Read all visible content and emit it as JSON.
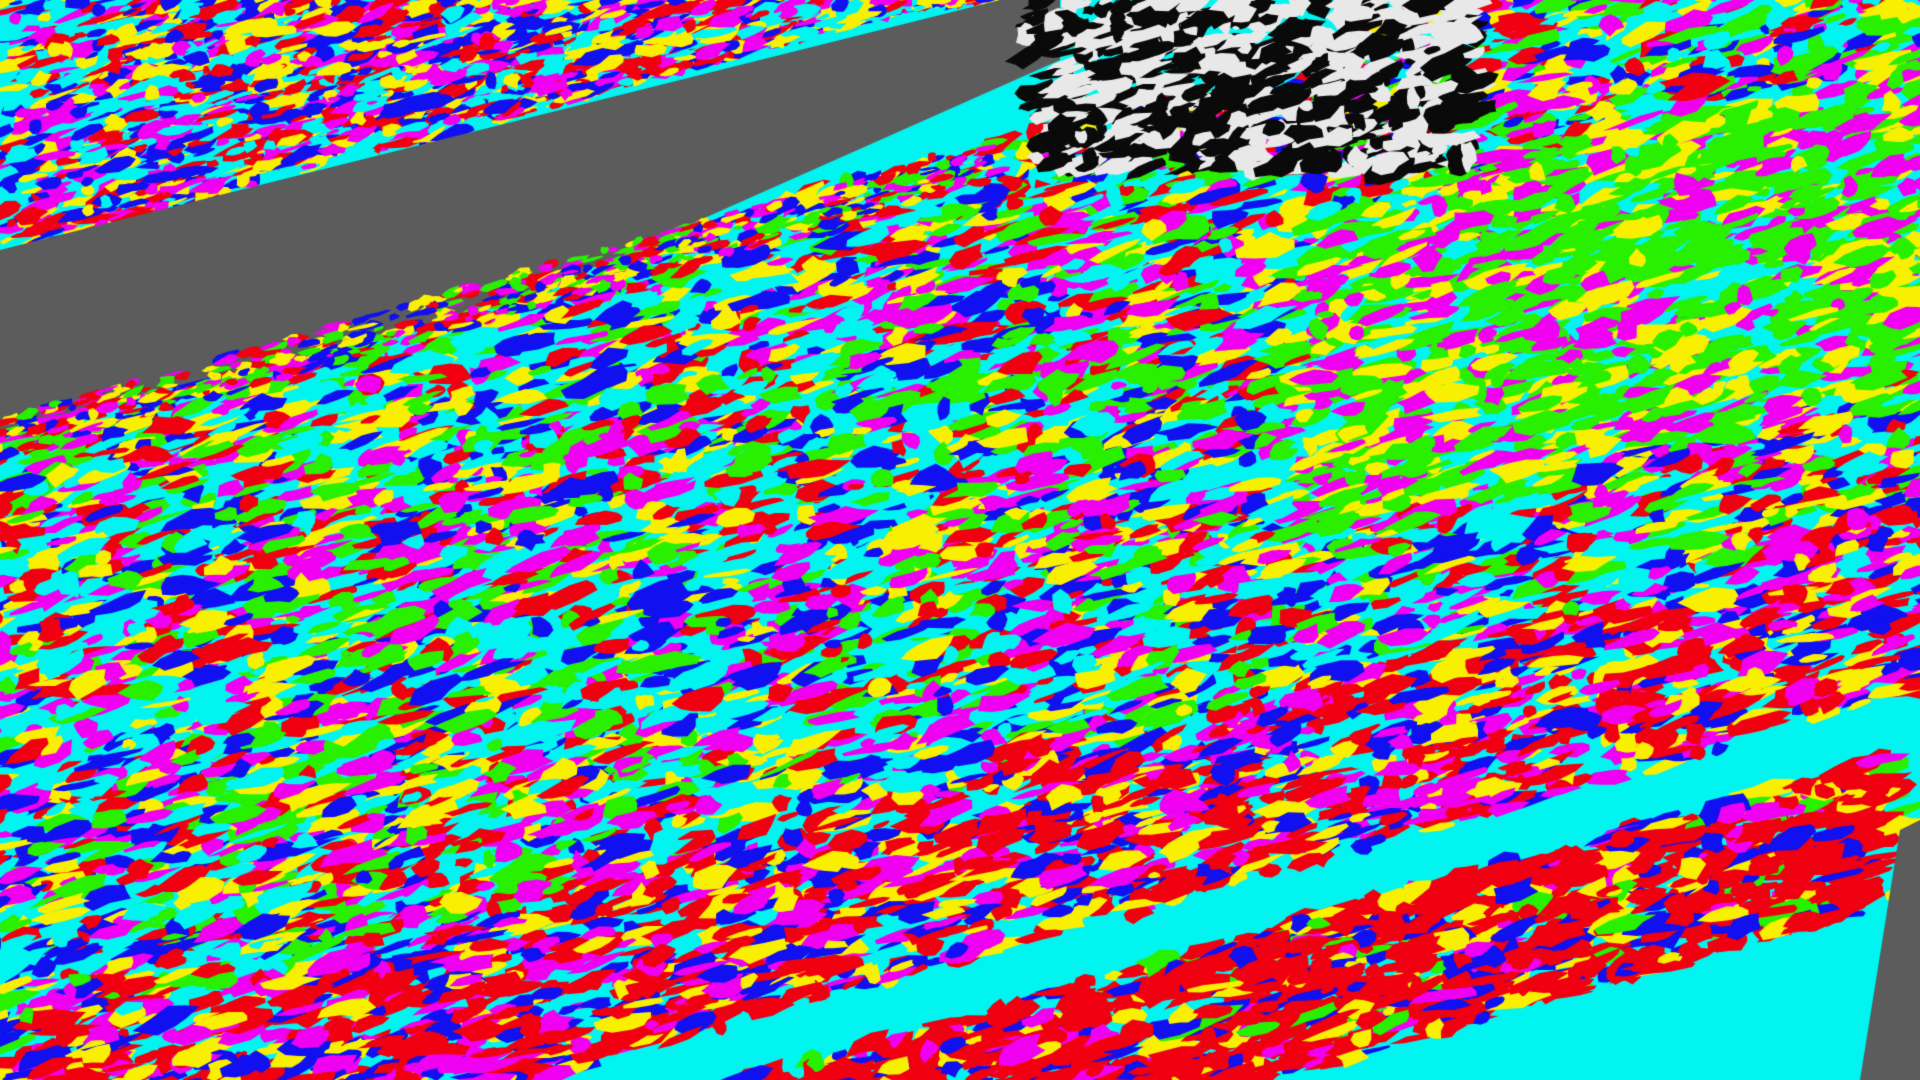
{
  "image": {
    "description_free": true,
    "palette": {
      "cyan": "#00f5f0",
      "red": "#f00010",
      "green": "#28f000",
      "yellow": "#f8f000",
      "blue": "#1010f0",
      "magenta": "#f000f0",
      "gray": "#5c5c5c",
      "black": "#0a0a0a",
      "white": "#e8e8e8"
    }
  }
}
